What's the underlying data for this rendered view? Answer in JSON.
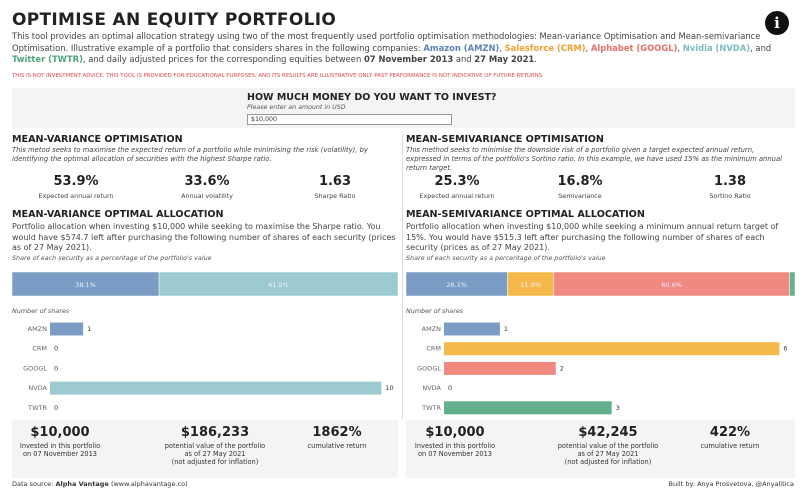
{
  "header": {
    "title": "OPTIMISE AN EQUITY PORTFOLIO",
    "intro": [
      "This tool provides an optimal allocation strategy using two of the most frequently used portfolio optimisation methodologies: Mean-variance Optimisation and Mean-semivariance Optimisation. Illustrative example of a portfolio that considers shares in the following companies: ",
      "Amazon (AMZN)",
      ", ",
      "Salesforce (CRM)",
      ", ",
      "Alphabet (GOOGL)",
      ", ",
      "Nvidia (NVDA)",
      ", and ",
      "Twitter (TWTR)",
      ", and  daily adjusted prices for the corresponding equities between ",
      "07 November 2013",
      " and ",
      "27 May 2021",
      "."
    ],
    "disclaimer": "THIS IS NOT INVESTMENT ADVICE. THIS TOOL IS PROVIDED FOR EDUCATIONAL PURPOSES, AND ITS RESULTS ARE ILLUSTRATIVE ONLY. PAST PERFORMANCE IS NOT INDICATIVE OF FUTURE RETURNS."
  },
  "input": {
    "question": "HOW MUCH MONEY DO YOU WANT TO INVEST?",
    "hint": "Please enter an amount in USD",
    "value": "$10,000"
  },
  "panels": [
    {
      "heading": "MEAN-VARIANCE OPTIMISATION",
      "description": "This metod seeks to maximise the expected return of a portfolio while minimising the risk (volatility), by identifying the optimal allocation of securities with the highest Sharpe ratio.",
      "metrics": [
        {
          "value": "53.9%",
          "label": "Expected annual return"
        },
        {
          "value": "33.6%",
          "label": "Annual volatility"
        },
        {
          "value": "1.63",
          "label": "Sharpe Ratio"
        }
      ],
      "allocation_heading": "MEAN-VARIANCE OPTIMAL ALLOCATION",
      "allocation_text": "Portfolio allocation when investing $10,000 while seeking to maximise the Sharpe ratio. You would have $574.7 left after purchasing the following number of shares of each security (prices as of 27 May 2021).",
      "footer": [
        {
          "value": "$10,000",
          "lines": [
            "Invested in this portfolio",
            "on 07 November 2013"
          ]
        },
        {
          "value": "$186,233",
          "lines": [
            "potential value of the portfolio",
            "as of 27 May 2021",
            "(not adjusted for inflation)"
          ]
        },
        {
          "value": "1862%",
          "lines": [
            "cumulative return"
          ]
        }
      ]
    },
    {
      "heading": "MEAN-SEMIVARIANCE OPTIMISATION",
      "description": "This method seeks to minimise the downside risk of a portfolio given a target expected annual return, expressed in terms of the portfolio's Sortino ratio. In this example, we have used 15% as the minimum annual return target.",
      "metrics": [
        {
          "value": "25.3%",
          "label": "Expected annual return"
        },
        {
          "value": "16.8%",
          "label": "Semivariance"
        },
        {
          "value": "1.38",
          "label": "Sortino Ratio"
        }
      ],
      "allocation_heading": "MEAN-SEMIVARIANCE OPTIMAL ALLOCATION",
      "allocation_text": "Portfolio allocation when investing $10,000 while seeking a minimum annual return target of 15%. You would have $515.3 left after purchasing the following number of shares of each security (prices as of 27 May 2021).",
      "footer": [
        {
          "value": "$10,000",
          "lines": [
            "Invested in this portfolio",
            "on 07 November 2013"
          ]
        },
        {
          "value": "$42,245",
          "lines": [
            "potential value of the portfolio",
            "as of 27 May 2021",
            "(not adjusted for inflation)"
          ]
        },
        {
          "value": "422%",
          "lines": [
            "cumulative return"
          ]
        }
      ]
    }
  ],
  "chart_data": [
    {
      "type": "stacked-bar",
      "title": "Share of each security as a percentage of the portfolio's value",
      "values": [
        38.1,
        61.9
      ],
      "value_labels": [
        "38.1%",
        "61.9%"
      ],
      "colors": [
        "#7b9cc4",
        "#9ccad0"
      ],
      "xlim": [
        0,
        100
      ]
    },
    {
      "type": "hbar",
      "title": "Number of shares",
      "categories": [
        "AMZN",
        "CRM",
        "GOOGL",
        "NVDA",
        "TWTR"
      ],
      "values": [
        1,
        0,
        0,
        10,
        0
      ],
      "colors": [
        "#7b9cc4",
        "#f5b84a",
        "#f08a80",
        "#9ccad0",
        "#63b08c"
      ],
      "xlim": [
        0,
        10.2
      ]
    },
    {
      "type": "stacked-bar",
      "title": "Share of each security as a percentage of the portfolio's value",
      "values": [
        26.1,
        11.9,
        60.6,
        1.4
      ],
      "value_labels": [
        "26.1%",
        "11.9%",
        "60.6%",
        null
      ],
      "colors": [
        "#7b9cc4",
        "#f5b84a",
        "#f08a80",
        "#63b08c"
      ],
      "xlim": [
        0,
        100
      ]
    },
    {
      "type": "hbar",
      "title": "Number of shares",
      "categories": [
        "AMZN",
        "CRM",
        "GOOGL",
        "NVDA",
        "TWTR"
      ],
      "values": [
        1,
        6,
        2,
        0,
        3
      ],
      "colors": [
        "#7b9cc4",
        "#f5b84a",
        "#f08a80",
        "#9ccad0",
        "#63b08c"
      ],
      "xlim": [
        0,
        6.1
      ]
    }
  ],
  "footer": {
    "source_label": "Data source: ",
    "source_name": "Alpha Vantage",
    "source_url": " (www.alphavantage.co)",
    "credit": "Built by: Anya Prosvetova, @Anyalitica"
  }
}
